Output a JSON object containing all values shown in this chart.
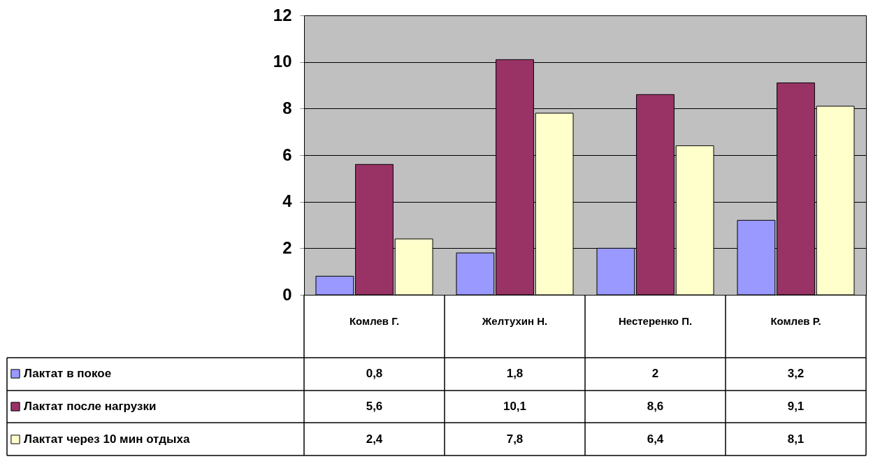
{
  "chart_data": {
    "type": "bar",
    "categories": [
      "Комлев Г.",
      "Желтухин Н.",
      "Нестеренко П.",
      "Комлев Р."
    ],
    "series": [
      {
        "name": "Лактат в покое",
        "color": "#9999ff",
        "values": [
          0.8,
          1.8,
          2,
          3.2
        ],
        "value_labels": [
          "0,8",
          "1,8",
          "2",
          "3,2"
        ]
      },
      {
        "name": "Лактат после нагрузки",
        "color": "#993366",
        "values": [
          5.6,
          10.1,
          8.6,
          9.1
        ],
        "value_labels": [
          "5,6",
          "10,1",
          "8,6",
          "9,1"
        ]
      },
      {
        "name": "Лактат через 10 мин отдыха",
        "color": "#ffffcc",
        "values": [
          2.4,
          7.8,
          6.4,
          8.1
        ],
        "value_labels": [
          "2,4",
          "7,8",
          "6,4",
          "8,1"
        ]
      }
    ],
    "ylim": [
      0,
      12
    ],
    "yticks": [
      0,
      2,
      4,
      6,
      8,
      10,
      12
    ],
    "grid": "y",
    "legend": "bottom left"
  }
}
